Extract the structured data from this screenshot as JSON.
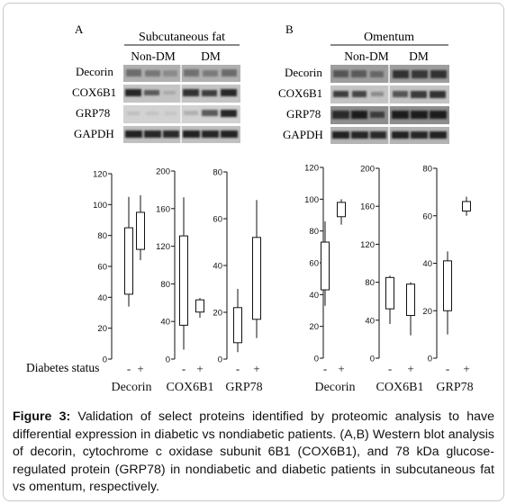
{
  "figure": {
    "panels": [
      {
        "letter": "A",
        "tissue": "Subcutaneous fat",
        "groups": [
          "Non-DM",
          "DM"
        ],
        "blot_rows": [
          "Decorin",
          "COX6B1",
          "GRP78",
          "GAPDH"
        ]
      },
      {
        "letter": "B",
        "tissue": "Omentum",
        "groups": [
          "Non-DM",
          "DM"
        ],
        "blot_rows": [
          "Decorin",
          "COX6B1",
          "GRP78",
          "GAPDH"
        ]
      }
    ],
    "row_label": "Diabetes status",
    "status_ticks": [
      "-",
      "+"
    ],
    "caption_label": "Figure 3:",
    "caption_text": " Validation of select proteins identified by proteomic analysis to have differential expression in diabetic vs nondiabetic patients. (A,B) Western blot analysis of decorin, cytochrome c oxidase subunit 6B1 (COX6B1), and 78 kDa glucose-regulated protein (GRP78) in nondiabetic and diabetic patients in subcutaneous fat vs omentum, respectively."
  },
  "chart_data": [
    {
      "type": "box",
      "panel": "A",
      "protein": "Decorin",
      "ylim": [
        0,
        120
      ],
      "ticks": [
        "0",
        "20",
        "40",
        "60",
        "80",
        "100",
        "120"
      ],
      "xlabel": "Decorin",
      "categories": [
        "-",
        "+"
      ],
      "boxes": [
        {
          "min": 34,
          "q1": 42,
          "q3": 85,
          "max": 105
        },
        {
          "min": 64,
          "q1": 71,
          "q3": 95,
          "max": 106
        }
      ]
    },
    {
      "type": "box",
      "panel": "A",
      "protein": "COX6B1",
      "ylim": [
        0,
        200
      ],
      "ticks": [
        "0",
        "40",
        "80",
        "120",
        "160",
        "200"
      ],
      "xlabel": "COX6B1",
      "categories": [
        "-",
        "+"
      ],
      "boxes": [
        {
          "min": 10,
          "q1": 36,
          "q3": 131,
          "max": 172
        },
        {
          "min": 44,
          "q1": 50,
          "q3": 63,
          "max": 65
        }
      ]
    },
    {
      "type": "box",
      "panel": "A",
      "protein": "GRP78",
      "ylim": [
        0,
        80
      ],
      "ticks": [
        "0",
        "20",
        "40",
        "60",
        "80"
      ],
      "xlabel": "GRP78",
      "categories": [
        "-",
        "+"
      ],
      "boxes": [
        {
          "min": 3,
          "q1": 7,
          "q3": 22,
          "max": 30
        },
        {
          "min": 9,
          "q1": 17,
          "q3": 52,
          "max": 68
        }
      ]
    },
    {
      "type": "box",
      "panel": "B",
      "protein": "Decorin",
      "ylim": [
        0,
        120
      ],
      "ticks": [
        "0",
        "20",
        "40",
        "60",
        "80",
        "100",
        "120"
      ],
      "xlabel": "Decorin",
      "categories": [
        "-",
        "+"
      ],
      "boxes": [
        {
          "min": 33,
          "q1": 43,
          "q3": 73,
          "max": 86
        },
        {
          "min": 84,
          "q1": 89,
          "q3": 98,
          "max": 100
        }
      ]
    },
    {
      "type": "box",
      "panel": "B",
      "protein": "COX6B1",
      "ylim": [
        0,
        200
      ],
      "ticks": [
        "0",
        "40",
        "80",
        "120",
        "160",
        "200"
      ],
      "xlabel": "COX6B1",
      "categories": [
        "-",
        "+"
      ],
      "boxes": [
        {
          "min": 36,
          "q1": 52,
          "q3": 85,
          "max": 87
        },
        {
          "min": 24,
          "q1": 45,
          "q3": 78,
          "max": 80
        }
      ]
    },
    {
      "type": "box",
      "panel": "B",
      "protein": "GRP78",
      "ylim": [
        0,
        80
      ],
      "ticks": [
        "0",
        "20",
        "40",
        "60",
        "80"
      ],
      "xlabel": "GRP78",
      "categories": [
        "-",
        "+"
      ],
      "boxes": [
        {
          "min": 10,
          "q1": 20,
          "q3": 41,
          "max": 45
        },
        {
          "min": 60,
          "q1": 62,
          "q3": 66,
          "max": 68
        }
      ]
    }
  ]
}
